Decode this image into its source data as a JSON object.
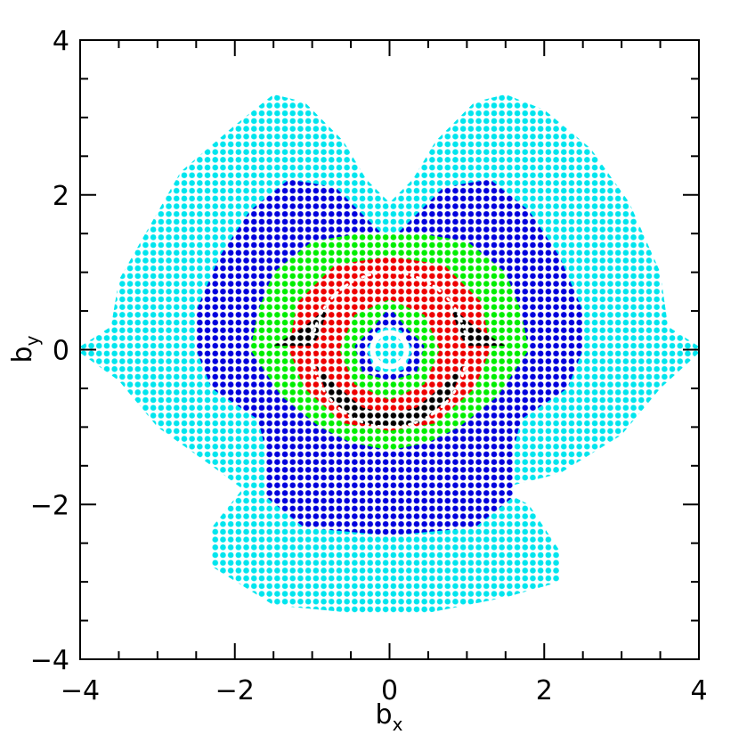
{
  "chart_data": {
    "type": "region",
    "xlabel": "b",
    "xlabel_sub": "x",
    "ylabel": "b",
    "ylabel_sub": "y",
    "xlim": [
      -4,
      4
    ],
    "ylim": [
      -4,
      4
    ],
    "xticks": [
      {
        "value": -4,
        "label": "−4"
      },
      {
        "value": -2,
        "label": "−2"
      },
      0,
      2,
      4
    ],
    "yticks": [
      {
        "value": -4,
        "label": "−4"
      },
      {
        "value": -2,
        "label": "−2"
      },
      0,
      2,
      4
    ],
    "xminorticks": [
      -3.5,
      -3,
      -2.5,
      -1.5,
      -1,
      -0.5,
      0.5,
      1,
      1.5,
      2.5,
      3,
      3.5
    ],
    "yminorticks": [
      -3.5,
      -3,
      -2.5,
      -1.5,
      -1,
      -0.5,
      0.5,
      1,
      1.5,
      2.5,
      3,
      3.5
    ],
    "series": [
      {
        "color": "#00e5ee",
        "x": [
          -4,
          -3.6,
          -3.5,
          -3.1,
          -2.7,
          -2.0,
          -1.5,
          -1.1,
          -0.6,
          -0.3,
          0,
          0.3,
          0.6,
          1.1,
          1.5,
          2.0,
          2.6,
          3.1,
          3.5,
          3.6,
          4,
          4,
          3.5,
          3.0,
          2.2,
          1.4,
          1.8,
          2.2,
          2.2,
          1.5,
          0.5,
          0,
          -0.5,
          -1.5,
          -2.3,
          -2.3,
          -1.9,
          -2.3,
          -3.0,
          -3.5,
          -4
        ],
        "y": [
          0.04,
          0.3,
          0.9,
          1.6,
          2.3,
          2.9,
          3.3,
          3.2,
          2.7,
          2.2,
          1.9,
          2.2,
          2.7,
          3.2,
          3.3,
          3.1,
          2.6,
          1.9,
          1.0,
          0.3,
          0.04,
          -0.04,
          -0.5,
          -1.1,
          -1.6,
          -1.8,
          -2.0,
          -2.6,
          -3.0,
          -3.2,
          -3.4,
          -3.4,
          -3.4,
          -3.3,
          -2.8,
          -2.3,
          -1.8,
          -1.5,
          -1.0,
          -0.4,
          -0.04
        ]
      },
      {
        "color": "#0000dd",
        "x": [
          -1.3,
          -0.7,
          -0.3,
          0,
          0.3,
          0.7,
          1.3,
          1.8,
          2.2,
          2.5,
          2.5,
          2.3,
          1.7,
          1.6,
          1.6,
          1.1,
          0,
          -1.1,
          -1.6,
          -1.6,
          -1.7,
          -2.3,
          -2.5,
          -2.5,
          -2.2,
          -1.8
        ],
        "y": [
          2.2,
          2.1,
          1.7,
          1.4,
          1.7,
          2.1,
          2.2,
          1.8,
          1.2,
          0.5,
          0,
          -0.5,
          -0.9,
          -1.3,
          -1.9,
          -2.3,
          -2.4,
          -2.3,
          -1.9,
          -1.3,
          -0.9,
          -0.5,
          0,
          0.5,
          1.2,
          1.8
        ]
      },
      {
        "color": "#00ee00",
        "x": [
          -1.5,
          -1.0,
          -0.4,
          0,
          0.4,
          1.0,
          1.5,
          1.7,
          1.8,
          1.4,
          0.9,
          0.5,
          0,
          -0.5,
          -0.9,
          -1.4,
          -1.8,
          -1.7
        ],
        "y": [
          1.0,
          1.4,
          1.5,
          1.5,
          1.5,
          1.4,
          1.0,
          0.5,
          0,
          -0.6,
          -1.0,
          -1.2,
          -1.3,
          -1.2,
          -1.0,
          -0.6,
          0,
          0.5
        ]
      },
      {
        "color": "#ee0000",
        "x": [
          -1.2,
          -0.7,
          0,
          0.7,
          1.2,
          1.3,
          1.1,
          0.6,
          0,
          -0.6,
          -1.1,
          -1.3
        ],
        "y": [
          0.6,
          1.1,
          1.2,
          1.1,
          0.6,
          0,
          -0.5,
          -0.95,
          -1.05,
          -0.95,
          -0.5,
          0
        ]
      },
      {
        "color": "#000000",
        "x": [
          -1.5,
          -1.1,
          -0.8,
          -0.9,
          -1.0
        ],
        "y": [
          0.05,
          0.3,
          0.55,
          0.2,
          0.05
        ]
      },
      {
        "color": "#000000",
        "x": [
          1.5,
          1.1,
          0.8,
          0.9,
          1.0
        ],
        "y": [
          0.05,
          0.3,
          0.55,
          0.2,
          0.05
        ]
      },
      {
        "color": "#000000",
        "x": [
          -0.95,
          -0.8,
          -0.4,
          0,
          0.4,
          0.8,
          0.95,
          0.7,
          0.35,
          0,
          -0.35,
          -0.7
        ],
        "y": [
          -0.2,
          -0.6,
          -0.95,
          -1.0,
          -0.95,
          -0.6,
          -0.2,
          -0.45,
          -0.75,
          -0.82,
          -0.75,
          -0.45
        ]
      },
      {
        "color": "#00ee00",
        "x": [
          -0.65,
          -0.45,
          0,
          0.45,
          0.65,
          0.45,
          0,
          -0.45
        ],
        "y": [
          0,
          0.45,
          0.65,
          0.45,
          0,
          -0.45,
          -0.65,
          -0.45
        ]
      },
      {
        "color": "#0000dd",
        "x": [
          -0.45,
          -0.2,
          0,
          0.2,
          0.45,
          0.35,
          0,
          -0.35
        ],
        "y": [
          0.05,
          0.3,
          0.55,
          0.3,
          0.05,
          -0.3,
          -0.4,
          -0.3
        ]
      },
      {
        "color": "#00e5ee",
        "x": [
          -0.3,
          -0.15,
          0,
          0.15,
          0.3,
          0.2,
          0,
          -0.2
        ],
        "y": [
          0,
          0.25,
          0.3,
          0.25,
          0,
          -0.25,
          -0.32,
          -0.25
        ]
      }
    ],
    "circles": [
      {
        "r": 1,
        "color": "#ffffff",
        "dashed": true
      },
      {
        "r": 0.22,
        "color": "#ffffff",
        "dashed": false
      }
    ]
  }
}
